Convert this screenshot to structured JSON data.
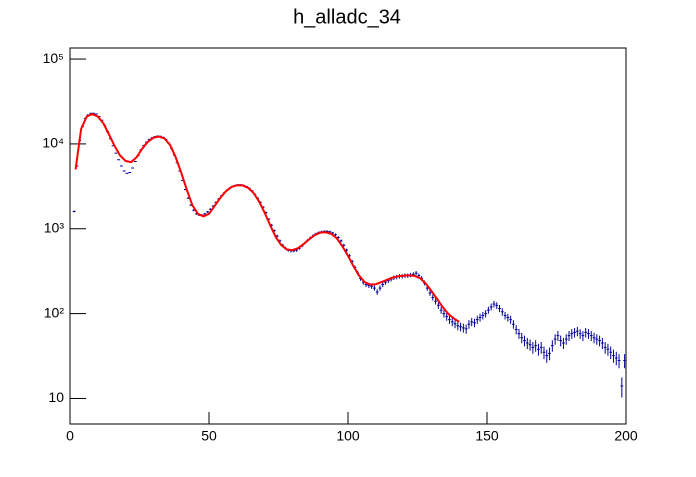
{
  "chart_data": {
    "type": "histogram",
    "title": "h_alladc_34",
    "bins": [
      0,
      1,
      2,
      3,
      4,
      5,
      6,
      7,
      8,
      9,
      10,
      11,
      12,
      13,
      14,
      15,
      16,
      17,
      18,
      19,
      20,
      21,
      22,
      23,
      24,
      25,
      26,
      27,
      28,
      29,
      30,
      31,
      32,
      33,
      34,
      35,
      36,
      37,
      38,
      39,
      40,
      41,
      42,
      43,
      44,
      45,
      46,
      47,
      48,
      49,
      50,
      51,
      52,
      53,
      54,
      55,
      56,
      57,
      58,
      59,
      60,
      61,
      62,
      63,
      64,
      65,
      66,
      67,
      68,
      69,
      70,
      71,
      72,
      73,
      74,
      75,
      76,
      77,
      78,
      79,
      80,
      81,
      82,
      83,
      84,
      85,
      86,
      87,
      88,
      89,
      90,
      91,
      92,
      93,
      94,
      95,
      96,
      97,
      98,
      99,
      100,
      101,
      102,
      103,
      104,
      105,
      106,
      107,
      108,
      109,
      110,
      111,
      112,
      113,
      114,
      115,
      116,
      117,
      118,
      119,
      120,
      121,
      122,
      123,
      124,
      125,
      126,
      127,
      128,
      129,
      130,
      131,
      132,
      133,
      134,
      135,
      136,
      137,
      138,
      139,
      140,
      141,
      142,
      143,
      144,
      145,
      146,
      147,
      148,
      149,
      150,
      151,
      152,
      153,
      154,
      155,
      156,
      157,
      158,
      159,
      160,
      161,
      162,
      163,
      164,
      165,
      166,
      167,
      168,
      169,
      170,
      171,
      172,
      173,
      174,
      175,
      176,
      177,
      178,
      179,
      180,
      181,
      182,
      183,
      184,
      185,
      186,
      187,
      188,
      189,
      190,
      191,
      192,
      193,
      194,
      195,
      196,
      197,
      198,
      199,
      200
    ],
    "values": [
      null,
      1600,
      5500,
      11000,
      16000,
      20000,
      22000,
      23000,
      23000,
      22500,
      21000,
      19000,
      16500,
      14000,
      11500,
      9500,
      7800,
      6500,
      5500,
      4800,
      4500,
      4600,
      5200,
      6200,
      7300,
      8500,
      9600,
      10500,
      11300,
      11800,
      12200,
      12400,
      12300,
      12000,
      11300,
      10200,
      8900,
      7400,
      6000,
      4800,
      3700,
      2900,
      2300,
      1900,
      1650,
      1500,
      1450,
      1450,
      1500,
      1580,
      1700,
      1850,
      2050,
      2250,
      2450,
      2650,
      2850,
      3000,
      3150,
      3250,
      3300,
      3300,
      3250,
      3150,
      3000,
      2800,
      2550,
      2300,
      2050,
      1800,
      1550,
      1300,
      1100,
      950,
      820,
      720,
      640,
      590,
      560,
      550,
      550,
      560,
      590,
      630,
      680,
      730,
      780,
      830,
      870,
      900,
      920,
      930,
      930,
      920,
      890,
      850,
      790,
      720,
      640,
      560,
      480,
      410,
      350,
      300,
      260,
      235,
      220,
      215,
      210,
      200,
      180,
      200,
      220,
      235,
      245,
      255,
      265,
      270,
      275,
      275,
      280,
      280,
      285,
      290,
      300,
      280,
      260,
      230,
      200,
      175,
      155,
      140,
      125,
      110,
      100,
      92,
      85,
      80,
      76,
      72,
      70,
      68,
      66,
      75,
      80,
      78,
      85,
      90,
      95,
      100,
      110,
      120,
      130,
      125,
      115,
      105,
      95,
      90,
      85,
      75,
      65,
      58,
      52,
      48,
      45,
      43,
      40,
      42,
      38,
      40,
      35,
      32,
      34,
      42,
      50,
      55,
      48,
      45,
      50,
      55,
      58,
      60,
      62,
      58,
      55,
      60,
      58,
      55,
      52,
      50,
      48,
      45,
      40,
      38,
      35,
      32,
      30,
      28,
      14,
      28
    ],
    "color": "#000099",
    "fit": {
      "color": "#ff0000",
      "x": [
        2,
        4,
        6,
        8,
        10,
        12,
        14,
        16,
        18,
        20,
        22,
        24,
        26,
        28,
        30,
        32,
        34,
        36,
        38,
        40,
        42,
        44,
        46,
        48,
        50,
        52,
        54,
        56,
        58,
        60,
        62,
        64,
        66,
        68,
        70,
        72,
        74,
        76,
        78,
        80,
        82,
        84,
        86,
        88,
        90,
        92,
        94,
        96,
        98,
        100,
        102,
        104,
        106,
        108,
        110,
        112,
        114,
        116,
        118,
        120,
        122,
        124,
        126,
        128,
        130,
        132,
        134,
        136,
        138,
        140
      ],
      "values": [
        5000,
        15000,
        21000,
        22500,
        21000,
        17500,
        13000,
        9500,
        7300,
        6300,
        6100,
        7000,
        8800,
        10600,
        11800,
        12200,
        11600,
        9700,
        7000,
        4600,
        2900,
        1900,
        1500,
        1400,
        1500,
        1850,
        2300,
        2750,
        3100,
        3250,
        3250,
        3050,
        2650,
        2100,
        1550,
        1100,
        800,
        640,
        570,
        560,
        590,
        660,
        750,
        840,
        900,
        910,
        870,
        770,
        620,
        480,
        360,
        280,
        235,
        220,
        222,
        235,
        250,
        265,
        275,
        280,
        282,
        278,
        260,
        225,
        185,
        150,
        120,
        100,
        88,
        80
      ]
    },
    "xlim": [
      0,
      200
    ],
    "xticks": [
      0,
      50,
      100,
      150,
      200
    ],
    "ylim": [
      5,
      135000
    ],
    "ylog": true,
    "yticks": [
      10,
      {
        "value": 100,
        "label": "10²"
      },
      {
        "value": 1000,
        "label": "10³"
      },
      {
        "value": 10000,
        "label": "10⁴"
      },
      {
        "value": 100000,
        "label": "10⁵"
      }
    ]
  }
}
